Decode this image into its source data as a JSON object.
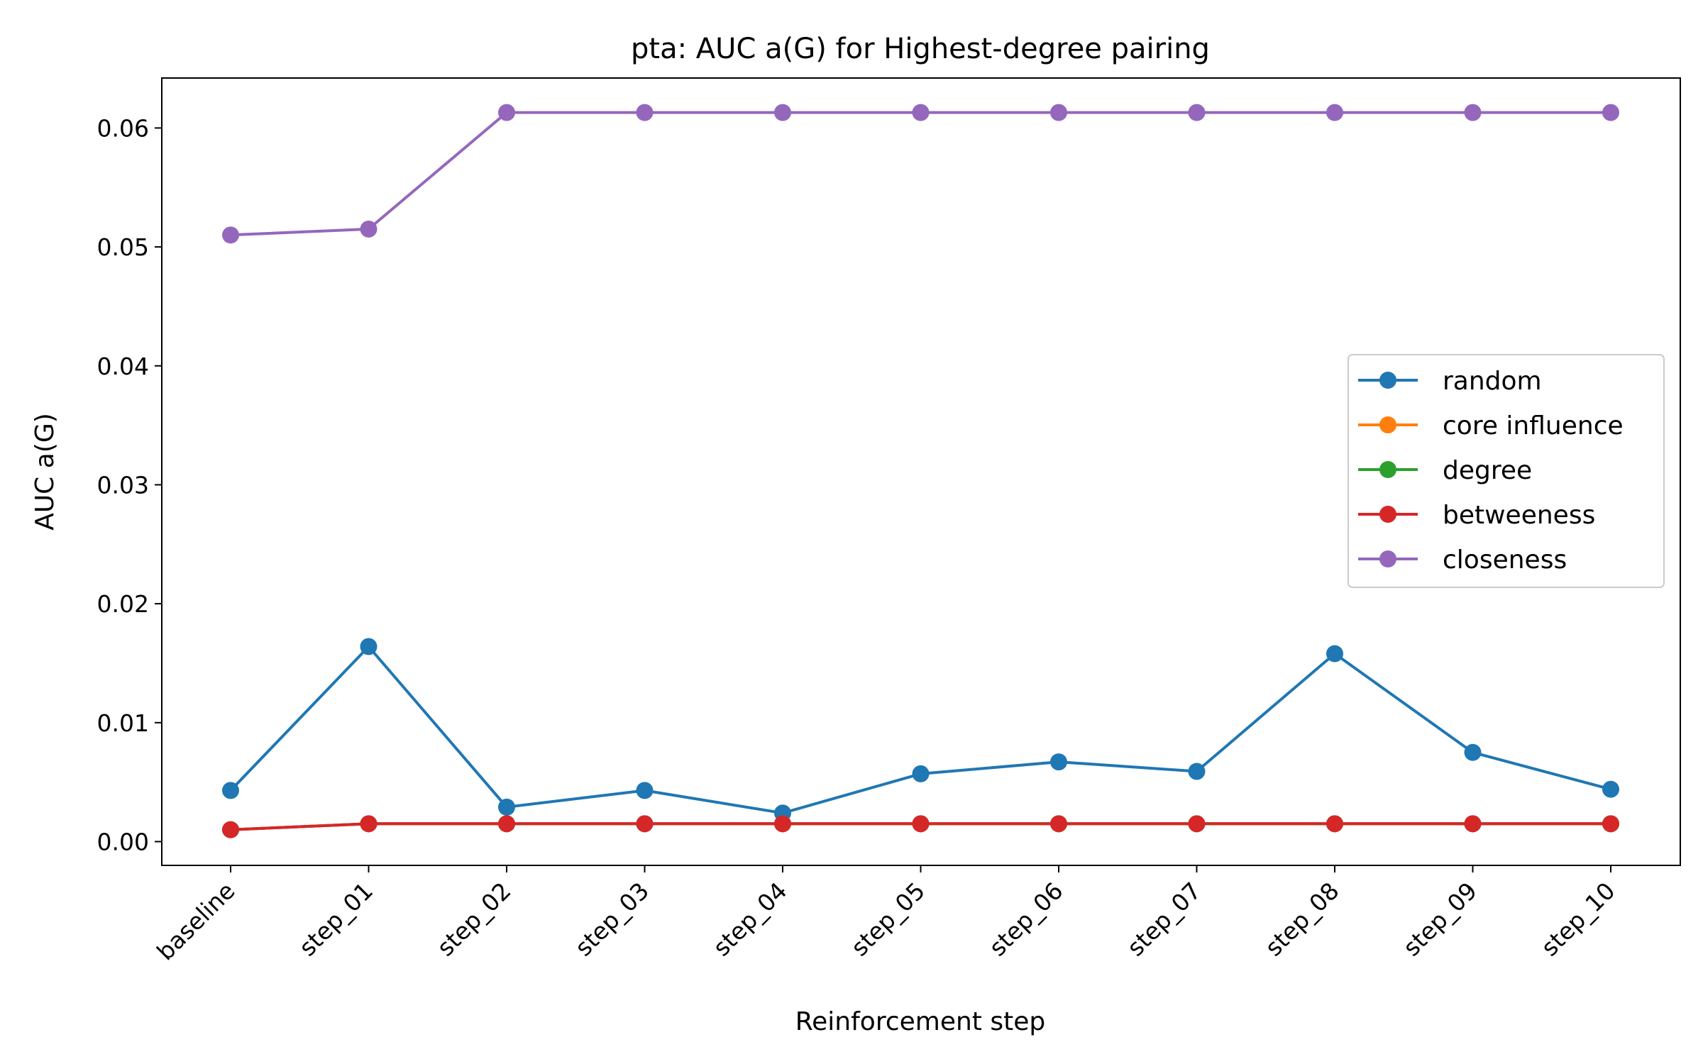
{
  "chart_data": {
    "type": "line",
    "title": "pta: AUC a(G) for Highest-degree pairing",
    "xlabel": "Reinforcement step",
    "ylabel": "AUC a(G)",
    "categories": [
      "baseline",
      "step_01",
      "step_02",
      "step_03",
      "step_04",
      "step_05",
      "step_06",
      "step_07",
      "step_08",
      "step_09",
      "step_10"
    ],
    "ylim": [
      -0.002,
      0.0642
    ],
    "yticks": [
      0.0,
      0.01,
      0.02,
      0.03,
      0.04,
      0.05,
      0.06
    ],
    "ytick_labels": [
      "0.00",
      "0.01",
      "0.02",
      "0.03",
      "0.04",
      "0.05",
      "0.06"
    ],
    "grid": false,
    "legend_position": "center-right",
    "series": [
      {
        "name": "random",
        "color": "#1f77b4",
        "values": [
          0.0043,
          0.0164,
          0.0029,
          0.0043,
          0.0024,
          0.0057,
          0.0067,
          0.0059,
          0.0158,
          0.0075,
          0.0044
        ]
      },
      {
        "name": "core influence",
        "color": "#ff7f0e",
        "values": [
          0.001,
          0.0015,
          0.0015,
          0.0015,
          0.0015,
          0.0015,
          0.0015,
          0.0015,
          0.0015,
          0.0015,
          0.0015
        ]
      },
      {
        "name": "degree",
        "color": "#2ca02c",
        "values": [
          0.001,
          0.0015,
          0.0015,
          0.0015,
          0.0015,
          0.0015,
          0.0015,
          0.0015,
          0.0015,
          0.0015,
          0.0015
        ]
      },
      {
        "name": "betweeness",
        "color": "#d62728",
        "values": [
          0.001,
          0.0015,
          0.0015,
          0.0015,
          0.0015,
          0.0015,
          0.0015,
          0.0015,
          0.0015,
          0.0015,
          0.0015
        ]
      },
      {
        "name": "closeness",
        "color": "#9467bd",
        "values": [
          0.051,
          0.0515,
          0.0613,
          0.0613,
          0.0613,
          0.0613,
          0.0613,
          0.0613,
          0.0613,
          0.0613,
          0.0613
        ]
      }
    ]
  }
}
